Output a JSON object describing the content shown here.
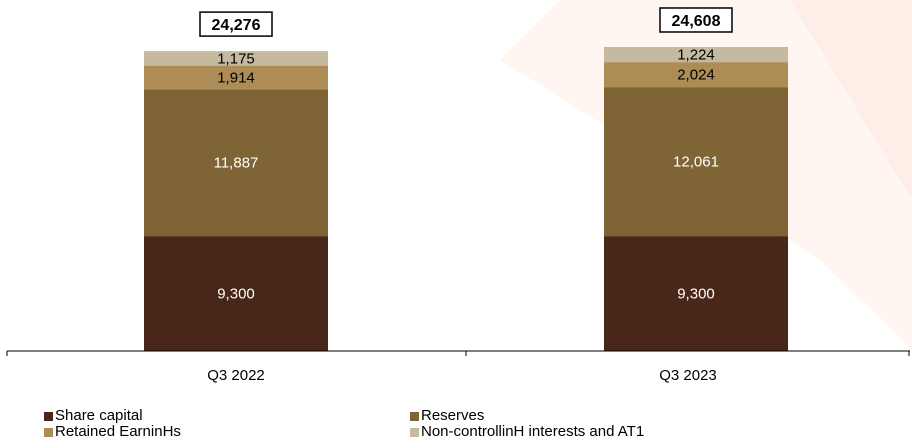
{
  "chart_data": {
    "type": "bar",
    "stacked": true,
    "categories": [
      "Q3 2022",
      "Q3 2023"
    ],
    "series": [
      {
        "name": "Share capital",
        "values": [
          9300,
          9300
        ],
        "color": "#482718",
        "label_color": "#ffffff"
      },
      {
        "name": "Reserves",
        "values": [
          11887,
          12061
        ],
        "color": "#7f6536",
        "label_color": "#ffffff"
      },
      {
        "name": "Retained EarninHs",
        "values": [
          1914,
          2024
        ],
        "color": "#ad8c55",
        "label_color": "#000000"
      },
      {
        "name": "Non-controllinH interests and AT1",
        "values": [
          1175,
          1224
        ],
        "color": "#c5b9a0",
        "label_color": "#000000"
      }
    ],
    "value_labels": [
      [
        "9,300",
        "9,300"
      ],
      [
        "11,887",
        "12,061"
      ],
      [
        "1,914",
        "2,024"
      ],
      [
        "1,175",
        "1,224"
      ]
    ],
    "totals": [
      "24,276",
      "24,608"
    ],
    "ylim": [
      0,
      24608
    ],
    "legend_position": "bottom",
    "grid": false
  }
}
